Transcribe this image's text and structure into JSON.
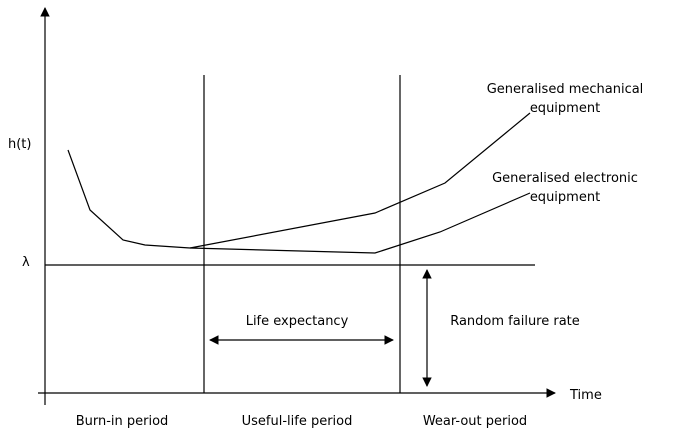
{
  "axes": {
    "y_label": "h(t)",
    "lambda_label": "λ",
    "x_label": "Time"
  },
  "curves": {
    "mechanical": {
      "lines": [
        "Generalised mechanical",
        "equipment"
      ]
    },
    "electronic": {
      "lines": [
        "Generalised electronic",
        "equipment"
      ]
    }
  },
  "annotations": {
    "life_expectancy": "Life expectancy",
    "random_failure_rate": "Random failure rate"
  },
  "periods": [
    "Burn-in period",
    "Useful-life period",
    "Wear-out period"
  ]
}
